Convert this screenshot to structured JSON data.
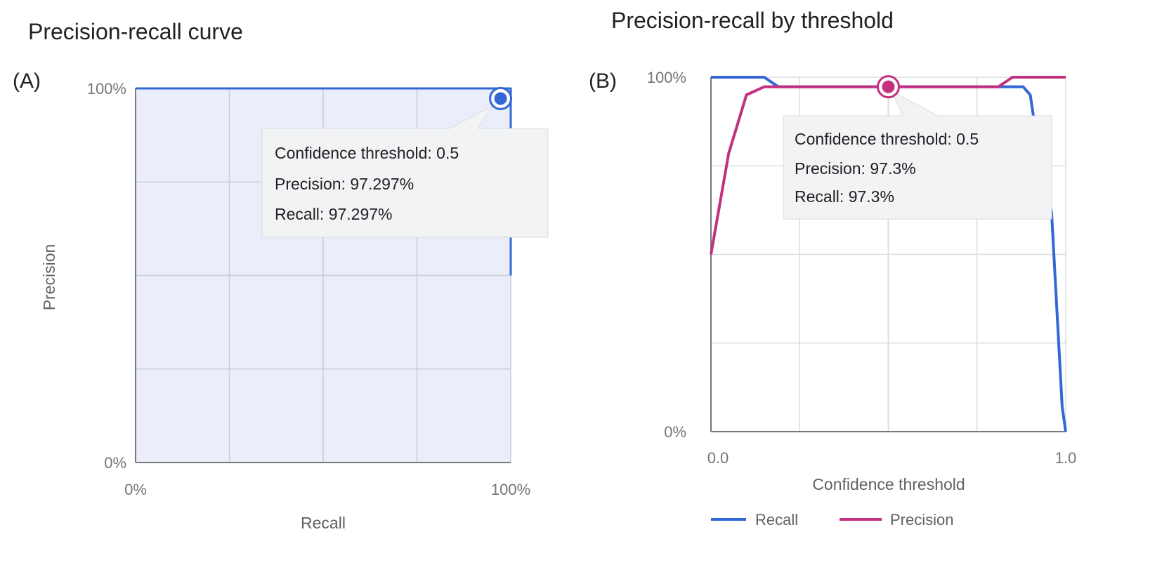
{
  "colors": {
    "recall": "#3367d6",
    "precision": "#c2307f",
    "area_fill": "#ebeefa",
    "tooltip_bg": "#f1f3f4"
  },
  "chart_data": [
    {
      "type": "area",
      "panel_label": "(A)",
      "title": "Precision-recall curve",
      "xlabel": "Recall",
      "ylabel": "Precision",
      "xlim": [
        0,
        100
      ],
      "ylim": [
        0,
        100
      ],
      "x_ticks": [
        "0%",
        "100%"
      ],
      "y_ticks": [
        "0%",
        "100%"
      ],
      "grid": true,
      "series": [
        {
          "x": [
            0,
            100,
            100
          ],
          "y": [
            100,
            100,
            50
          ]
        }
      ],
      "highlight": {
        "x": 97.297,
        "y": 97.297
      },
      "tooltip": [
        "Confidence threshold: 0.5",
        "Precision: 97.297%",
        "Recall: 97.297%"
      ]
    },
    {
      "type": "line",
      "panel_label": "(B)",
      "title": "Precision-recall by threshold",
      "xlabel": "Confidence threshold",
      "ylabel": "",
      "xlim": [
        0,
        1
      ],
      "ylim": [
        0,
        100
      ],
      "x_ticks": [
        "0.0",
        "1.0"
      ],
      "y_ticks": [
        "0%",
        "100%"
      ],
      "grid": true,
      "legend": "bottom",
      "series": [
        {
          "name": "Recall",
          "x": [
            0,
            0.15,
            0.19,
            0.88,
            0.9,
            0.93,
            0.96,
            0.99,
            1.0
          ],
          "y": [
            100,
            100,
            97.3,
            97.3,
            95,
            75,
            62,
            7,
            0
          ]
        },
        {
          "name": "Precision",
          "x": [
            0,
            0.05,
            0.1,
            0.15,
            0.81,
            0.85,
            1.0
          ],
          "y": [
            50,
            78.5,
            95,
            97.3,
            97.3,
            100,
            100
          ]
        }
      ],
      "highlight": {
        "x": 0.5,
        "y": 97.3
      },
      "tooltip": [
        "Confidence threshold: 0.5",
        "Precision: 97.3%",
        "Recall: 97.3%"
      ]
    }
  ]
}
